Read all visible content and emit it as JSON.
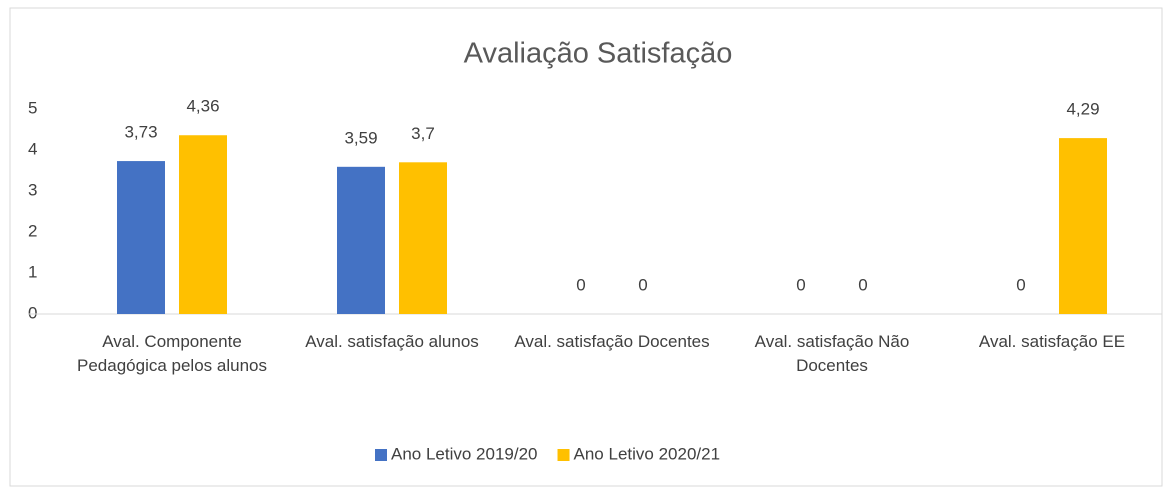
{
  "chart_data": {
    "type": "bar",
    "title": "Avaliação Satisfação",
    "categories": [
      "Aval. Componente Pedagógica pelos alunos",
      "Aval. satisfação alunos",
      "Aval. satisfação Docentes",
      "Aval. satisfação Não Docentes",
      "Aval. satisfação EE"
    ],
    "series": [
      {
        "name": "Ano Letivo 2019/20",
        "color": "#4472c4",
        "values": [
          3.73,
          3.59,
          0,
          0,
          0
        ],
        "value_labels": [
          "3,73",
          "3,59",
          "0",
          "0",
          "0"
        ]
      },
      {
        "name": "Ano Letivo 2020/21",
        "color": "#ffc000",
        "values": [
          4.36,
          3.7,
          0,
          0,
          4.29
        ],
        "value_labels": [
          "4,36",
          "3,7",
          "0",
          "0",
          "4,29"
        ]
      }
    ],
    "ylim": [
      0,
      5
    ],
    "yticks": [
      0,
      1,
      2,
      3,
      4,
      5
    ],
    "grid": false,
    "legend": "bottom"
  }
}
